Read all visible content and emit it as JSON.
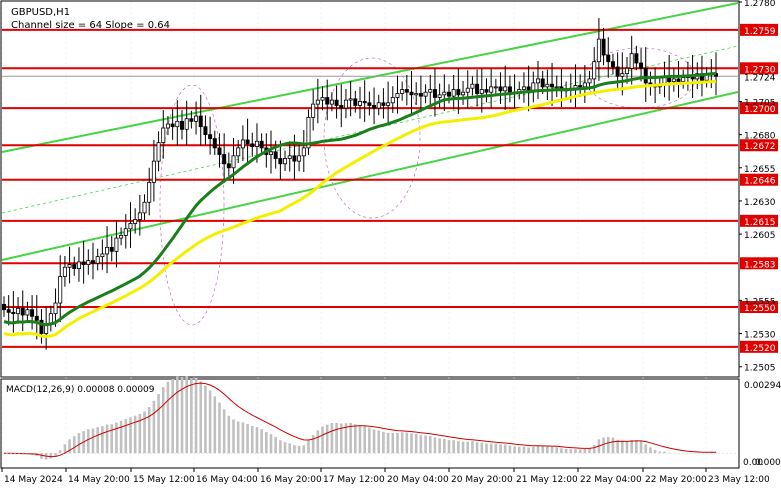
{
  "chart_data": {
    "type": "candlestick",
    "symbol_label": "GBPUSD,H1",
    "channel_label": "Channel size = 64 Slope = 0.64",
    "price_axis": {
      "range": [
        1.2498,
        1.278
      ],
      "ticks": [
        "1.2780",
        "1.2705",
        "1.2680",
        "1.2655",
        "1.2630",
        "1.2605",
        "1.2555",
        "1.2530",
        "1.2505"
      ]
    },
    "levels": [
      {
        "label": "1.2759",
        "value": 1.2759
      },
      {
        "label": "1.2730",
        "value": 1.273
      },
      {
        "label": "1.2700",
        "value": 1.27
      },
      {
        "label": "1.2672",
        "value": 1.2672
      },
      {
        "label": "1.2646",
        "value": 1.2646
      },
      {
        "label": "1.2615",
        "value": 1.2615
      },
      {
        "label": "1.2583",
        "value": 1.2583
      },
      {
        "label": "1.2550",
        "value": 1.255
      },
      {
        "label": "1.2520",
        "value": 1.252
      }
    ],
    "current_price": {
      "label": "1.2724",
      "value": 1.2724
    },
    "time_labels": [
      "14 May 2024",
      "14 May 20:00",
      "15 May 12:00",
      "16 May 04:00",
      "16 May 20:00",
      "17 May 12:00",
      "20 May 04:00",
      "20 May 20:00",
      "21 May 12:00",
      "22 May 04:00",
      "22 May 20:00",
      "23 May 12:00"
    ],
    "closes": [
      1.2548,
      1.2546,
      1.2545,
      1.2549,
      1.2544,
      1.2548,
      1.2543,
      1.254,
      1.253,
      1.2537,
      1.2545,
      1.2553,
      1.2573,
      1.258,
      1.2582,
      1.2579,
      1.2584,
      1.2582,
      1.2585,
      1.2583,
      1.2588,
      1.259,
      1.2595,
      1.2592,
      1.2602,
      1.2604,
      1.2609,
      1.2613,
      1.2616,
      1.2621,
      1.2629,
      1.2644,
      1.266,
      1.2674,
      1.2685,
      1.2688,
      1.2686,
      1.269,
      1.2684,
      1.2692,
      1.269,
      1.2694,
      1.2686,
      1.268,
      1.2677,
      1.267,
      1.2665,
      1.2658,
      1.2655,
      1.2664,
      1.267,
      1.2676,
      1.2673,
      1.2671,
      1.2675,
      1.267,
      1.2665,
      1.2667,
      1.2662,
      1.2658,
      1.2662,
      1.2664,
      1.266,
      1.2664,
      1.267,
      1.2693,
      1.2703,
      1.2706,
      1.2708,
      1.2703,
      1.2706,
      1.2702,
      1.27,
      1.2706,
      1.2707,
      1.2702,
      1.2705,
      1.2704,
      1.2702,
      1.27,
      1.2704,
      1.2702,
      1.2704,
      1.2708,
      1.2711,
      1.2714,
      1.2712,
      1.271,
      1.2711,
      1.2709,
      1.2712,
      1.2714,
      1.2708,
      1.271,
      1.2712,
      1.2709,
      1.2714,
      1.271,
      1.2712,
      1.2715,
      1.2718,
      1.2711,
      1.2714,
      1.2712,
      1.2716,
      1.2716,
      1.2713,
      1.2716,
      1.2712,
      1.2712,
      1.2714,
      1.2716,
      1.2712,
      1.2719,
      1.2722,
      1.2716,
      1.2718,
      1.2716,
      1.2716,
      1.2713,
      1.2714,
      1.2715,
      1.2717,
      1.2716,
      1.2719,
      1.2722,
      1.2735,
      1.2752,
      1.274,
      1.2735,
      1.2731,
      1.2724,
      1.2726,
      1.273,
      1.2741,
      1.2734,
      1.273,
      1.2719,
      1.2717,
      1.2716,
      1.2718,
      1.2724,
      1.272,
      1.2722,
      1.272,
      1.2723,
      1.2724,
      1.2722,
      1.2726,
      1.2721,
      1.2725,
      1.2726,
      1.2724
    ],
    "moving_averages": [
      {
        "color": "#1a7f1a",
        "period": 30
      },
      {
        "color": "#f2ef00",
        "period": 60
      }
    ],
    "channel_color": "#44d444",
    "level_color": "#e00000",
    "macd": {
      "label": "MACD(12,26,9) 0.00008 0.00009",
      "ticks": [
        "0.00294",
        "0.00"
      ],
      "tick_right": "0.00045"
    }
  }
}
